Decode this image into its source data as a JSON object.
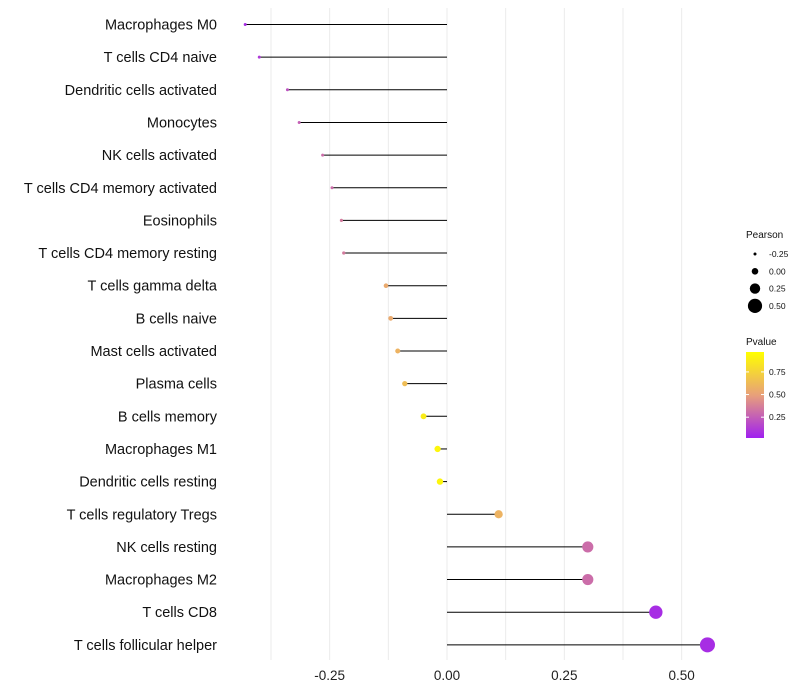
{
  "chart_data": {
    "type": "lollipop",
    "categories": [
      "Macrophages M0",
      "T cells CD4 naive",
      "Dendritic cells activated",
      "Monocytes",
      "NK cells activated",
      "T cells CD4 memory activated",
      "Eosinophils",
      "T cells CD4 memory resting",
      "T cells gamma delta",
      "B cells naive",
      "Mast cells activated",
      "Plasma cells",
      "B cells memory",
      "Macrophages M1",
      "Dendritic cells resting",
      "T cells regulatory  Tregs ",
      "NK cells resting",
      "Macrophages M2",
      "T cells CD8",
      "T cells follicular helper"
    ],
    "pearson": [
      -0.43,
      -0.4,
      -0.34,
      -0.315,
      -0.265,
      -0.245,
      -0.225,
      -0.22,
      -0.13,
      -0.12,
      -0.105,
      -0.09,
      -0.05,
      -0.02,
      -0.015,
      0.11,
      0.3,
      0.3,
      0.445,
      0.555
    ],
    "pvalue": [
      0.05,
      0.1,
      0.2,
      0.25,
      0.3,
      0.3,
      0.35,
      0.35,
      0.55,
      0.55,
      0.6,
      0.65,
      0.9,
      0.95,
      0.95,
      0.6,
      0.3,
      0.3,
      0.05,
      0.05
    ],
    "xlim": [
      -0.43,
      0.56
    ],
    "xticks": [
      -0.25,
      0.0,
      0.25,
      0.5
    ],
    "xtick_labels": [
      "-0.25",
      "0.00",
      "0.25",
      "0.50"
    ],
    "xlabel": "",
    "ylabel": "",
    "legend": {
      "size": {
        "title": "Pearson",
        "labels": [
          "-0.25",
          "0.00",
          "0.25",
          "0.50"
        ],
        "values": [
          -0.25,
          0.0,
          0.25,
          0.5
        ]
      },
      "color": {
        "title": "Pvalue",
        "labels": [
          "0.75",
          "0.50",
          "0.25"
        ],
        "values": [
          0.75,
          0.5,
          0.25
        ],
        "range": [
          0.02,
          0.97
        ]
      }
    },
    "colors": {
      "low": "#a020f0",
      "mid": "#e8a07a",
      "high": "#ffff00",
      "segment": "#000000",
      "grid": "#ebebeb"
    }
  }
}
